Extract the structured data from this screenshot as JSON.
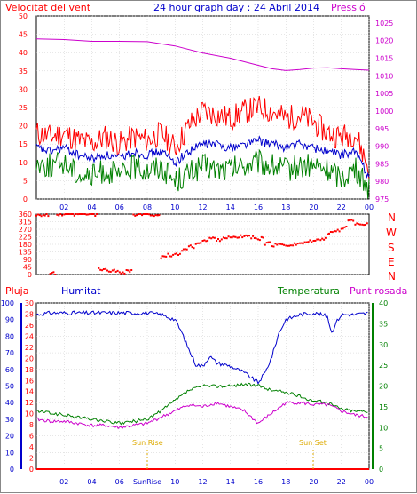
{
  "header": {
    "title": "24 hour graph day : 24 Abril 2014",
    "wind_label": "Velocitat del vent",
    "pressure_label": "Pressió"
  },
  "lower_header": {
    "rain_label": "Pluja",
    "humidity_label": "Humitat",
    "temperature_label": "Temperatura",
    "dew_label": "Punt rosada"
  },
  "compass": [
    "N",
    "W",
    "S",
    "E",
    "N"
  ],
  "annotations": {
    "sunrise": "Sun Rise",
    "sunset": "Sun Set",
    "sunrise_tick": "SunRise"
  },
  "colors": {
    "wind_max": "#ff0000",
    "wind_avg": "#0000cc",
    "wind_min": "#008000",
    "pressure": "#cc00cc",
    "direction": "#ff0000",
    "humidity": "#0000cc",
    "temperature": "#008000",
    "dew": "#cc00cc",
    "rain": "#ff0000",
    "grid": "#cccccc",
    "sun": "#ddaa00"
  },
  "chart_data": [
    {
      "type": "line",
      "name": "wind-and-pressure",
      "x_ticks": [
        "02",
        "04",
        "06",
        "08",
        "10",
        "12",
        "14",
        "16",
        "18",
        "20",
        "22",
        "00"
      ],
      "y_left_ticks": [
        0,
        5,
        10,
        15,
        20,
        25,
        30,
        35,
        40,
        45,
        50
      ],
      "y_left_lim": [
        0,
        50
      ],
      "y_right_ticks": [
        975,
        980,
        985,
        990,
        995,
        1000,
        1005,
        1010,
        1015,
        1020,
        1025
      ],
      "y_right_lim": [
        975,
        1027
      ],
      "x_lim_hours": [
        0,
        24
      ],
      "grid": true,
      "series": [
        {
          "name": "Velocitat del vent",
          "axis": "left",
          "x": [
            0,
            1,
            2,
            3,
            4,
            5,
            6,
            7,
            8,
            9,
            10,
            11,
            12,
            13,
            14,
            15,
            16,
            17,
            18,
            19,
            20,
            21,
            22,
            23,
            24
          ],
          "values": [
            18,
            17,
            18,
            16,
            15,
            17,
            15,
            17,
            16,
            18,
            14,
            20,
            24,
            23,
            22,
            24,
            25,
            24,
            22,
            23,
            21,
            18,
            17,
            18,
            8
          ]
        },
        {
          "axis": "left",
          "x": [
            0,
            1,
            2,
            3,
            4,
            5,
            6,
            7,
            8,
            9,
            10,
            11,
            12,
            13,
            14,
            15,
            16,
            17,
            18,
            19,
            20,
            21,
            22,
            23,
            24
          ],
          "values": [
            14,
            13,
            14,
            12,
            11,
            12,
            11,
            13,
            12,
            13,
            10,
            13,
            15,
            15,
            14,
            15,
            16,
            15,
            14,
            15,
            14,
            13,
            12,
            13,
            6
          ]
        },
        {
          "axis": "left",
          "x": [
            0,
            1,
            2,
            3,
            4,
            5,
            6,
            7,
            8,
            9,
            10,
            11,
            12,
            13,
            14,
            15,
            16,
            17,
            18,
            19,
            20,
            21,
            22,
            23,
            24
          ],
          "values": [
            10,
            9,
            10,
            7,
            6,
            8,
            6,
            9,
            8,
            9,
            5,
            7,
            9,
            8,
            8,
            9,
            10,
            9,
            8,
            9,
            9,
            8,
            6,
            8,
            3
          ]
        },
        {
          "name": "Pressió",
          "axis": "right",
          "x": [
            0,
            2,
            4,
            6,
            8,
            10,
            12,
            14,
            16,
            17,
            18,
            19,
            20,
            21,
            22,
            23,
            24
          ],
          "values": [
            1020.5,
            1020.3,
            1019.8,
            1019.8,
            1019.7,
            1018.5,
            1016.5,
            1015,
            1013,
            1012,
            1011.5,
            1011.8,
            1012.2,
            1012.3,
            1012,
            1011.8,
            1011.6
          ]
        }
      ]
    },
    {
      "type": "scatter",
      "name": "wind-direction",
      "y_ticks": [
        0,
        45,
        90,
        135,
        180,
        225,
        270,
        315,
        360
      ],
      "y_lim": [
        0,
        360
      ],
      "x_lim_hours": [
        0,
        24
      ],
      "grid": true,
      "series": [
        {
          "x": [
            0,
            0.5,
            1,
            1.5,
            2,
            2.5,
            3,
            3.5,
            4,
            4.5,
            5,
            5.5,
            6,
            6.5,
            7,
            7.5,
            8,
            8.5,
            9,
            9.5,
            10,
            10.5,
            11,
            11.5,
            12,
            12.5,
            13,
            13.5,
            14,
            14.5,
            15,
            15.5,
            16,
            16.5,
            17,
            17.5,
            18,
            18.5,
            19,
            19.5,
            20,
            20.5,
            21,
            21.5,
            22,
            22.5,
            23,
            23.5
          ],
          "values": [
            358,
            355,
            5,
            357,
            359,
            356,
            360,
            358,
            357,
            30,
            25,
            20,
            15,
            22,
            355,
            357,
            356,
            358,
            100,
            115,
            120,
            150,
            165,
            190,
            200,
            215,
            210,
            222,
            218,
            225,
            230,
            220,
            215,
            185,
            175,
            180,
            178,
            182,
            188,
            195,
            200,
            215,
            245,
            262,
            280,
            320,
            305,
            300
          ]
        }
      ]
    },
    {
      "type": "line",
      "name": "humidity-temperature-dew",
      "x_ticks": [
        "02",
        "04",
        "06",
        "08",
        "10",
        "12",
        "14",
        "16",
        "18",
        "20",
        "22",
        "00"
      ],
      "y_left_ticks": [
        0,
        10,
        20,
        30,
        40,
        50,
        60,
        70,
        80,
        90,
        100
      ],
      "y_left_lim": [
        0,
        100
      ],
      "y_rain_ticks": [
        0,
        2,
        4,
        6,
        8,
        10,
        12,
        14,
        16,
        18,
        20,
        22,
        24,
        26,
        28,
        30
      ],
      "y_rain_lim": [
        0,
        30
      ],
      "y_right_ticks": [
        0,
        5,
        10,
        15,
        20,
        25,
        30,
        35,
        40
      ],
      "y_right_lim": [
        0,
        40
      ],
      "x_lim_hours": [
        0,
        24
      ],
      "grid": true,
      "series": [
        {
          "name": "Humitat",
          "axis": "left",
          "x": [
            0,
            1,
            2,
            3,
            4,
            5,
            6,
            7,
            8,
            9,
            10,
            10.5,
            11,
            11.5,
            12,
            12.5,
            13,
            14,
            15,
            15.5,
            16,
            16.5,
            17,
            17.5,
            18,
            19,
            20,
            21,
            21.3,
            21.6,
            22,
            23,
            24
          ],
          "values": [
            93,
            94,
            94,
            94,
            94,
            94,
            94,
            94,
            94,
            93,
            90,
            82,
            72,
            63,
            62,
            68,
            64,
            62,
            58,
            55,
            52,
            58,
            68,
            82,
            90,
            93,
            94,
            92,
            82,
            88,
            93,
            93,
            94
          ]
        },
        {
          "name": "Temperatura",
          "axis": "right",
          "x": [
            0,
            1,
            2,
            3,
            4,
            5,
            6,
            7,
            8,
            9,
            10,
            11,
            12,
            13,
            14,
            15,
            16,
            17,
            18,
            19,
            20,
            21,
            22,
            23,
            24
          ],
          "values": [
            14,
            13.5,
            13,
            12.5,
            12,
            11.5,
            11,
            11.5,
            12,
            14,
            16.5,
            19,
            20,
            20,
            20,
            20.5,
            20,
            19,
            18.5,
            17.5,
            16.5,
            16,
            14.5,
            14,
            14
          ]
        },
        {
          "name": "Punt rosada",
          "axis": "right",
          "x": [
            0,
            1,
            2,
            3,
            4,
            5,
            6,
            7,
            8,
            9,
            10,
            11,
            12,
            13,
            14,
            15,
            16,
            17,
            18,
            19,
            20,
            21,
            22,
            23,
            24
          ],
          "values": [
            12,
            11.5,
            11.5,
            11,
            10.5,
            10.5,
            10,
            10.5,
            11,
            12.5,
            14,
            15.5,
            15,
            16,
            15,
            14,
            11,
            13.5,
            16,
            16,
            15.5,
            15.5,
            14,
            13,
            12.5
          ]
        },
        {
          "name": "Pluja",
          "axis": "rain",
          "x": [
            0,
            24
          ],
          "values": [
            0,
            0
          ]
        }
      ]
    }
  ]
}
